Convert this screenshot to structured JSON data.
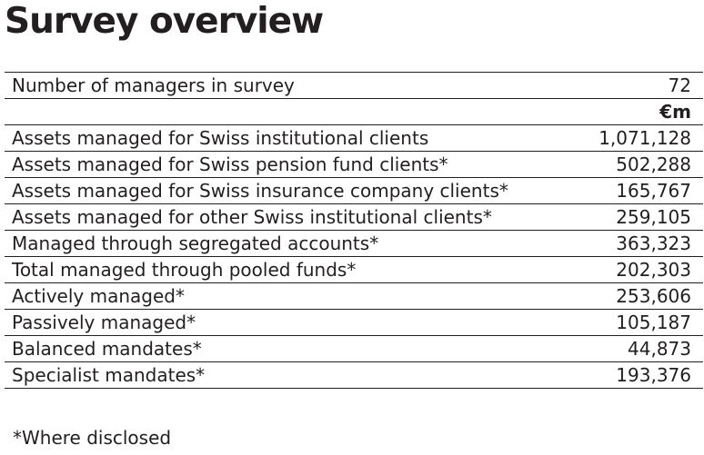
{
  "title": "Survey overview",
  "table": {
    "header_row": {
      "label": "Number of managers in survey",
      "value": "72"
    },
    "unit_row": {
      "label": "",
      "value": "€m"
    },
    "rows": [
      {
        "label": "Assets managed for Swiss institutional clients",
        "value": "1,071,128"
      },
      {
        "label": "Assets managed for Swiss pension fund clients*",
        "value": "502,288"
      },
      {
        "label": "Assets managed for Swiss insurance company clients*",
        "value": "165,767"
      },
      {
        "label": "Assets managed for other Swiss institutional clients*",
        "value": "259,105"
      },
      {
        "label": "Managed through segregated accounts*",
        "value": "363,323"
      },
      {
        "label": "Total managed through pooled funds*",
        "value": "202,303"
      },
      {
        "label": "Actively managed*",
        "value": "253,606"
      },
      {
        "label": "Passively managed*",
        "value": "105,187"
      },
      {
        "label": "Balanced mandates*",
        "value": "44,873"
      },
      {
        "label": "Specialist mandates*",
        "value": "193,376"
      }
    ]
  },
  "footnote": "*Where disclosed"
}
